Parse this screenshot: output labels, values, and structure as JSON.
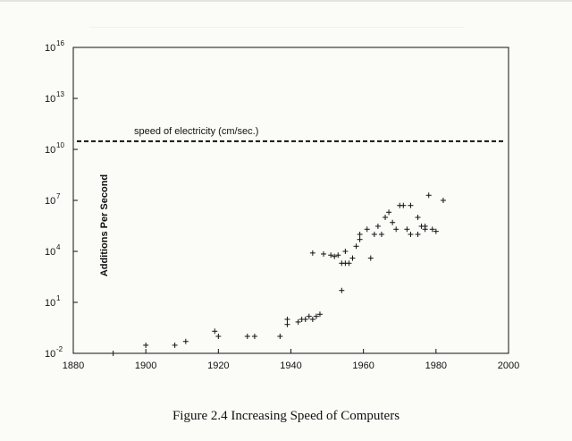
{
  "caption": "Figure 2.4 Increasing Speed of Computers",
  "chart_data": {
    "type": "scatter",
    "title": "",
    "xlabel": "",
    "ylabel": "Additions Per Second",
    "y_scale": "log10",
    "xlim": [
      1880,
      2000
    ],
    "ylim_exponents": [
      -2,
      16
    ],
    "x_ticks": [
      1880,
      1900,
      1920,
      1940,
      1960,
      1980,
      2000
    ],
    "y_ticks": [
      {
        "base": "10",
        "exp": "16",
        "value_exp": 16
      },
      {
        "base": "10",
        "exp": "13",
        "value_exp": 13
      },
      {
        "base": "10",
        "exp": "10",
        "value_exp": 10
      },
      {
        "base": "10",
        "exp": "7",
        "value_exp": 7
      },
      {
        "base": "10",
        "exp": "4",
        "value_exp": 4
      },
      {
        "base": "10",
        "exp": "1",
        "value_exp": 1
      },
      {
        "base": "10",
        "exp": "-2",
        "value_exp": -2
      }
    ],
    "reference_line": {
      "label": "speed of electricity (cm/sec.)",
      "value": 30000000000,
      "style": "dashed"
    },
    "marker": "+",
    "grid": false,
    "series": [
      {
        "x": [
          1891,
          1900,
          1908,
          1911,
          1919,
          1920,
          1928,
          1930,
          1937,
          1939,
          1939,
          1942,
          1943,
          1944,
          1945,
          1946,
          1947,
          1948,
          1946,
          1949,
          1951,
          1952,
          1953,
          1954,
          1954,
          1955,
          1955,
          1956,
          1957,
          1958,
          1959,
          1959,
          1961,
          1962,
          1963,
          1964,
          1965,
          1966,
          1967,
          1968,
          1969,
          1970,
          1971,
          1972,
          1973,
          1973,
          1975,
          1975,
          1976,
          1977,
          1977,
          1978,
          1979,
          1980,
          1982
        ],
        "y": [
          0.01,
          0.03,
          0.03,
          0.05,
          0.2,
          0.1,
          0.1,
          0.1,
          0.1,
          0.5,
          1,
          0.7,
          1,
          1,
          1.5,
          1,
          1.5,
          2,
          8000,
          7000,
          6000,
          5000,
          6000,
          50,
          2000,
          2000,
          10000,
          2000,
          4000,
          20000,
          50000,
          100000,
          200000,
          4000,
          100000,
          300000,
          100000,
          1000000,
          2000000,
          500000,
          200000,
          5000000,
          5000000,
          200000,
          5000000,
          100000,
          100000,
          1000000,
          300000,
          200000,
          300000,
          20000000,
          200000,
          150000,
          10000000
        ]
      }
    ]
  }
}
